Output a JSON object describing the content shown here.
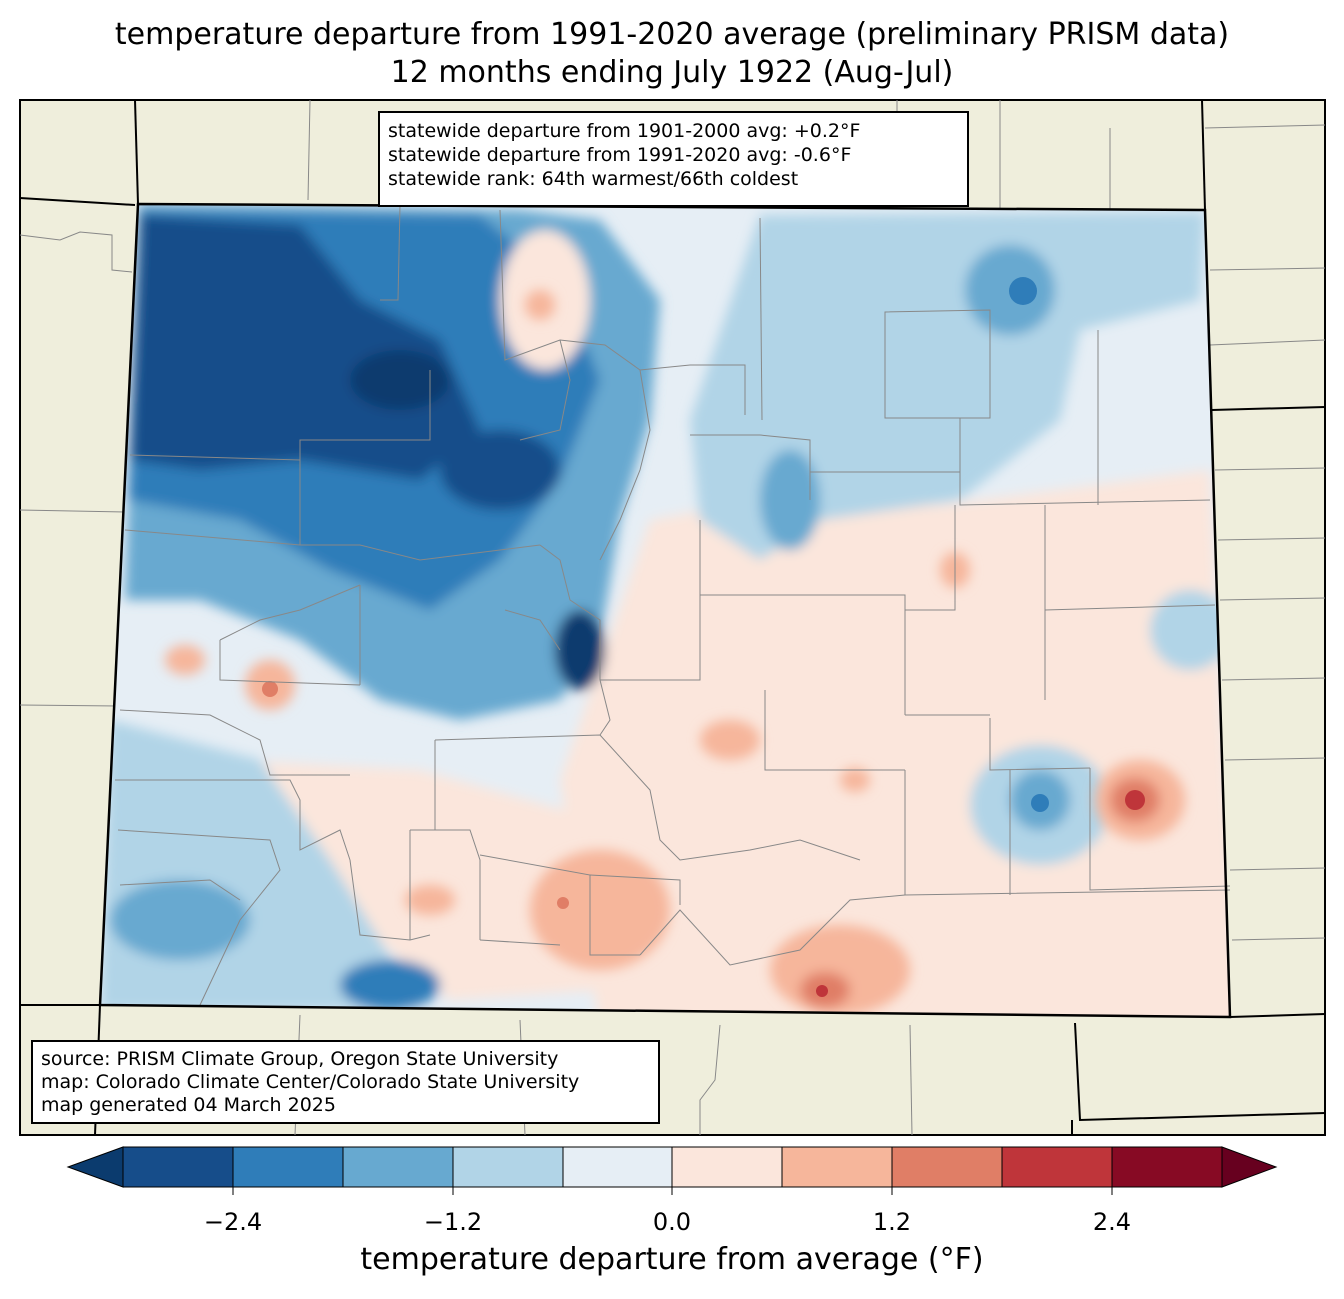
{
  "title": {
    "line1": "temperature departure from 1991-2020 average (preliminary PRISM data)",
    "line2": "12 months ending July 1922 (Aug-Jul)"
  },
  "stats": {
    "line1": "statewide departure from 1901-2000 avg: +0.2°F",
    "line2": "statewide departure from 1991-2020 avg: -0.6°F",
    "line3": "statewide rank: 64th warmest/66th coldest"
  },
  "source": {
    "line1": "source: PRISM Climate Group, Oregon State University",
    "line2": "map: Colorado Climate Center/Colorado State University",
    "line3": "map generated 04 March 2025"
  },
  "colorbar": {
    "label": "temperature departure from average (°F)",
    "ticks": [
      "−2.4",
      "−1.2",
      "0.0",
      "1.2",
      "2.4"
    ],
    "colors": [
      "#0b3b6e",
      "#164d8a",
      "#2f7db9",
      "#67a9d0",
      "#b1d4e7",
      "#e6eef5",
      "#fbe6dc",
      "#f6b69b",
      "#e07e66",
      "#bf353a",
      "#870a24",
      "#67001f"
    ]
  },
  "map_colors": {
    "land": "#efeedc",
    "deep_blue": "#164d8a",
    "blue": "#2f7db9",
    "mid_blue": "#67a9d0",
    "light_blue": "#b1d4e7",
    "pale_blue": "#e6eef5",
    "pale_red": "#fbe6dc",
    "light_red": "#f6b69b",
    "red": "#e07e66",
    "dark_red": "#bf353a"
  }
}
